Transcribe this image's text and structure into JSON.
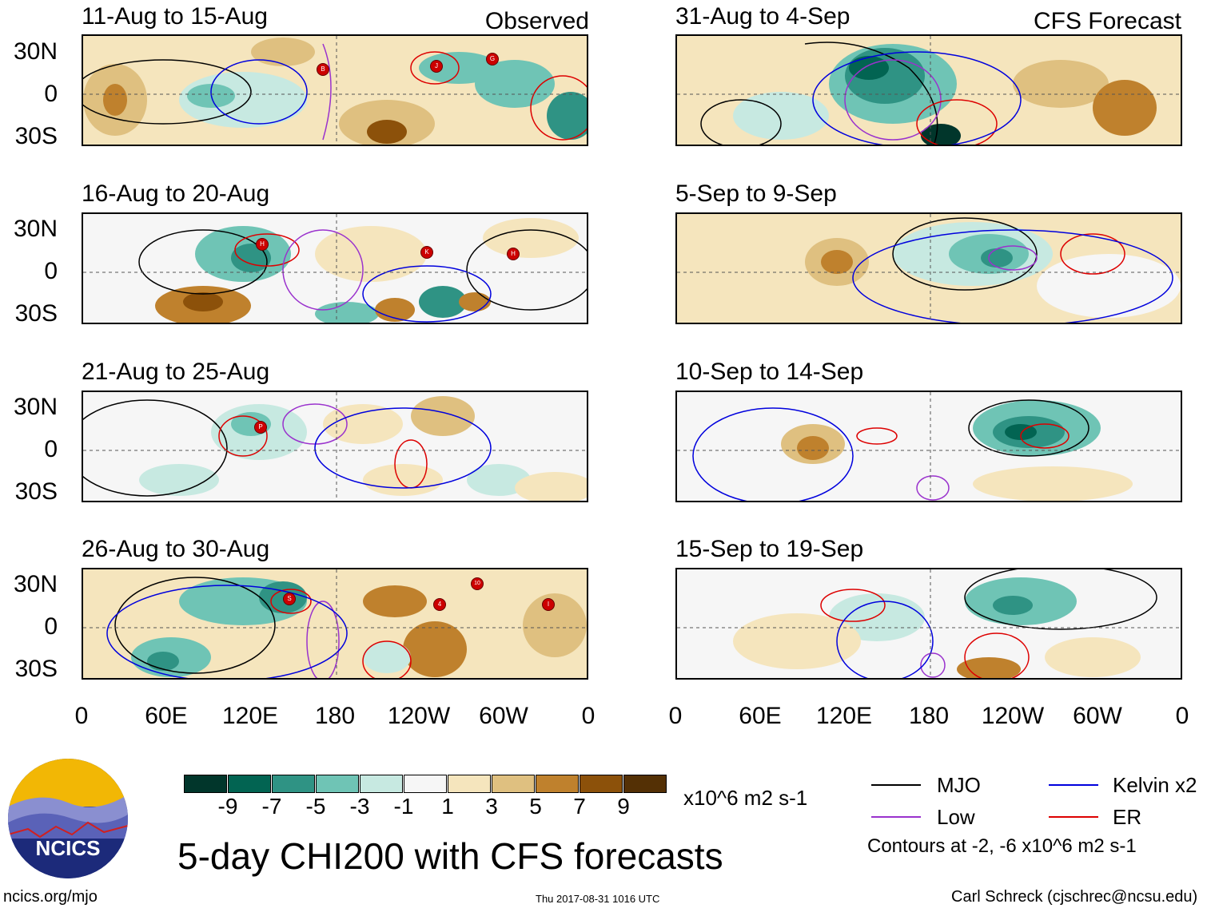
{
  "observed_label": "Observed",
  "forecast_label": "CFS Forecast",
  "lat_labels": [
    "30N",
    "0",
    "30S"
  ],
  "lon_labels": [
    "0",
    "60E",
    "120E",
    "180",
    "120W",
    "60W",
    "0"
  ],
  "panels_left": [
    {
      "title": "11-Aug to 15-Aug"
    },
    {
      "title": "16-Aug to 20-Aug"
    },
    {
      "title": "21-Aug to 25-Aug"
    },
    {
      "title": "26-Aug to 30-Aug"
    }
  ],
  "panels_right": [
    {
      "title": "31-Aug to 4-Sep"
    },
    {
      "title": "5-Sep to 9-Sep"
    },
    {
      "title": "10-Sep to 14-Sep"
    },
    {
      "title": "15-Sep to 19-Sep"
    }
  ],
  "storm_labels": [
    "B",
    "J",
    "G",
    "H",
    "K",
    "H",
    "P",
    "S",
    "4",
    "10",
    "I"
  ],
  "colorbar": {
    "colors": [
      "#01362b",
      "#026452",
      "#2f9384",
      "#6fc4b5",
      "#c7e9e1",
      "#f6f6f6",
      "#f5e5bd",
      "#dfc080",
      "#bf812d",
      "#8c510a",
      "#543005"
    ],
    "ticks": [
      "-9",
      "-7",
      "-5",
      "-3",
      "-1",
      "1",
      "3",
      "5",
      "7",
      "9"
    ],
    "units": "x10^6 m2 s-1"
  },
  "legend": {
    "mjo": "MJO",
    "kelvin": "Kelvin x2",
    "low": "Low",
    "er": "ER",
    "mjo_color": "#000000",
    "kelvin_color": "#0000dd",
    "low_color": "#9a32cd",
    "er_color": "#dd0000",
    "contours_note": "Contours at -2, -6 x10^6 m2 s-1"
  },
  "logo_text": "NCICS",
  "main_title": "5-day CHI200 with CFS forecasts",
  "footer": {
    "url": "ncics.org/mjo",
    "timestamp": "Thu 2017-08-31 1016 UTC",
    "author": "Carl Schreck (cjschrec@ncsu.edu)"
  }
}
